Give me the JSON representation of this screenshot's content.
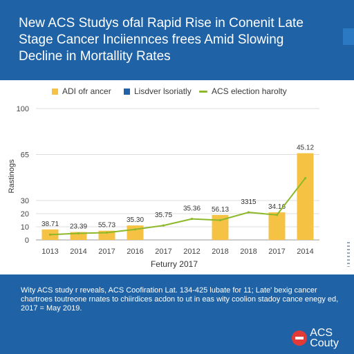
{
  "header": {
    "title": "New ACS Studys ofal Rapid Rise in Conenit Late Stage Cancer Inciiennces frees Amid Slowing Decline in Mortallity Rates"
  },
  "legend": [
    {
      "label": "ADI ofr ancer",
      "type": "bar",
      "color": "#f6c244"
    },
    {
      "label": "Lisdver lsoriatly",
      "type": "bar",
      "color": "#1f63a6"
    },
    {
      "label": "ACS election harolty",
      "type": "line",
      "color": "#8cb82a"
    }
  ],
  "chart_data": {
    "type": "bar",
    "categories": [
      "1013",
      "2014",
      "2017",
      "2016",
      "2017",
      "2012",
      "2018",
      "2018",
      "2017",
      "2014"
    ],
    "xlabel": "Feturry 2017",
    "ylabel": "Rastinogs",
    "ylim": [
      0,
      100
    ],
    "yticks": [
      0,
      10,
      20,
      30,
      65,
      100
    ],
    "grid": true,
    "legend_position": "top",
    "series": [
      {
        "name": "ADI ofr ancer",
        "type": "bar",
        "color": "#f6c244",
        "values": [
          8,
          6,
          7,
          11,
          null,
          null,
          19,
          null,
          21,
          66
        ],
        "labels": [
          "38.71",
          "23.39",
          "55.73",
          "35.30",
          "",
          "",
          "56.13",
          "",
          "34.16",
          "45.12"
        ]
      },
      {
        "name": "ACS election harolty",
        "type": "line",
        "color": "#8cb82a",
        "values": [
          4,
          5,
          5.5,
          8,
          11,
          16,
          15,
          21,
          19,
          47
        ],
        "labels": [
          "",
          "",
          "",
          "",
          "35.75",
          "35.36",
          "",
          "3315",
          "",
          ""
        ]
      }
    ]
  },
  "footer": {
    "note": "Wity ACS study r reveals, ACS Coofiration Lat. 134-425 lubate for 11; Late' bexig cancer chartroes toutreone rnates to chiirdices acdon to ut in eas wity coolion stadoy cance enegy ed, 2017 = May 2019.",
    "brand": [
      "ACS",
      "Couty"
    ]
  }
}
